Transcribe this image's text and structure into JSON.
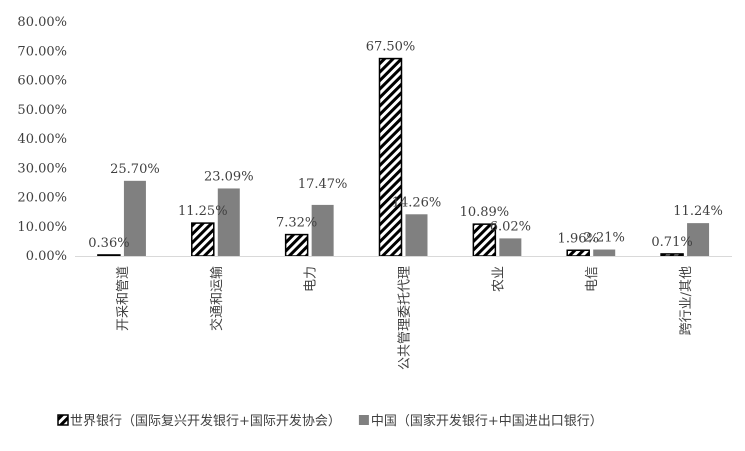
{
  "chart_data": {
    "type": "bar",
    "categories": [
      "开采和管道",
      "交通和运输",
      "电力",
      "公共管理委托代理",
      "农业",
      "电信",
      "跨行业/其他"
    ],
    "series": [
      {
        "name": "世界银行（国际复兴开发银行+国际开发协会）",
        "values": [
          0.36,
          11.25,
          7.32,
          67.5,
          10.89,
          1.96,
          0.71
        ],
        "labels": [
          "0.36%",
          "11.25%",
          "7.32%",
          "67.50%",
          "10.89%",
          "1.96%",
          "0.71%"
        ],
        "pattern": "diagonal-stripes"
      },
      {
        "name": "中国（国家开发银行+中国进出口银行）",
        "values": [
          25.7,
          23.09,
          17.47,
          14.26,
          6.02,
          2.21,
          11.24
        ],
        "labels": [
          "25.70%",
          "23.09%",
          "17.47%",
          "14.26%",
          "6.02%",
          "2.21%",
          "11.24%"
        ],
        "color": "#808080"
      }
    ],
    "ylim": [
      0,
      80
    ],
    "yticks": [
      "0.00%",
      "10.00%",
      "20.00%",
      "30.00%",
      "40.00%",
      "50.00%",
      "60.00%",
      "70.00%",
      "80.00%"
    ],
    "grid": false,
    "legend_position": "bottom"
  }
}
